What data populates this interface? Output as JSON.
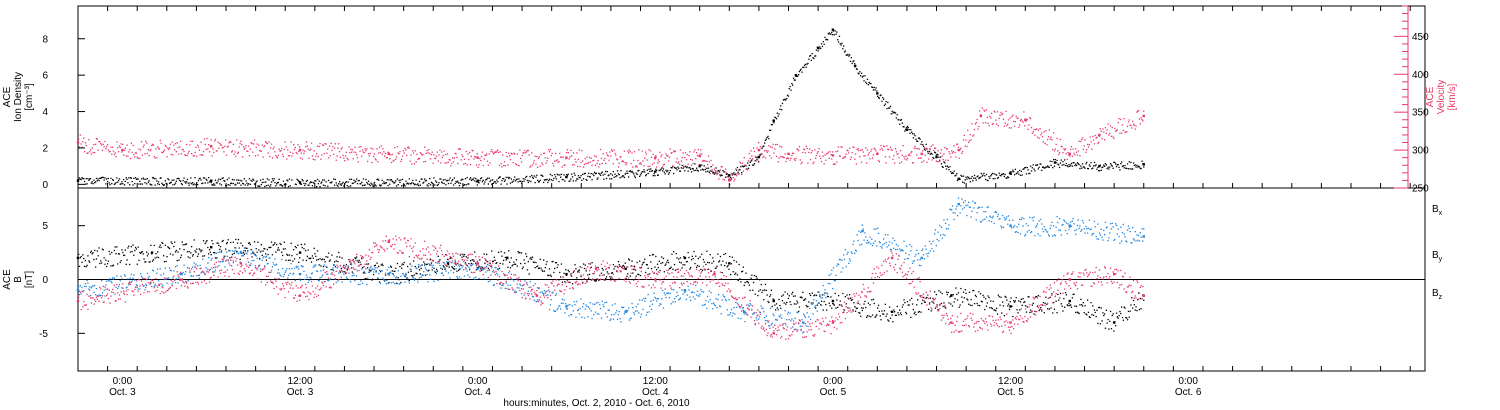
{
  "chart_data": {
    "type": "scatter",
    "time_axis": {
      "label": "hours:minutes, Oct.  2, 2010 - Oct.  6, 2010",
      "start": "2010-10-02T21:00",
      "end": "2010-10-06T16:00",
      "ticks": [
        {
          "time": "2010-10-03T00:00",
          "hm": "0:00",
          "day": "Oct. 3"
        },
        {
          "time": "2010-10-03T12:00",
          "hm": "12:00",
          "day": "Oct. 3"
        },
        {
          "time": "2010-10-04T00:00",
          "hm": "0:00",
          "day": "Oct. 4"
        },
        {
          "time": "2010-10-04T12:00",
          "hm": "12:00",
          "day": "Oct. 4"
        },
        {
          "time": "2010-10-05T00:00",
          "hm": "0:00",
          "day": "Oct. 5"
        },
        {
          "time": "2010-10-05T12:00",
          "hm": "12:00",
          "day": "Oct. 5"
        },
        {
          "time": "2010-10-06T00:00",
          "hm": "0:00",
          "day": "Oct. 6"
        }
      ]
    },
    "panels": [
      {
        "left_axis": {
          "label_lines": [
            "ACE",
            "Ion Density",
            "[cm⁻³]"
          ],
          "range": [
            -0.2,
            9.8
          ],
          "ticks": [
            0,
            2,
            4,
            6,
            8
          ],
          "color": "#000000"
        },
        "right_axis": {
          "label_lines": [
            "ACE",
            "Velocity",
            "[km/s]"
          ],
          "range": [
            250,
            490
          ],
          "ticks": [
            250,
            300,
            350,
            400,
            450
          ],
          "color": "#e8386a"
        },
        "series": [
          {
            "quantity": "density",
            "axis": "left",
            "color": "#000000",
            "points": [
              [
                "2010-10-02T21:00",
                0.2
              ],
              [
                "2010-10-03T06:00",
                0.2
              ],
              [
                "2010-10-03T12:00",
                0.1
              ],
              [
                "2010-10-04T00:00",
                0.2
              ],
              [
                "2010-10-04T06:00",
                0.4
              ],
              [
                "2010-10-04T12:00",
                0.7
              ],
              [
                "2010-10-04T15:00",
                1.0
              ],
              [
                "2010-10-04T17:00",
                0.5
              ],
              [
                "2010-10-04T19:00",
                1.5
              ],
              [
                "2010-10-04T20:00",
                3.5
              ],
              [
                "2010-10-04T21:30",
                6.0
              ],
              [
                "2010-10-04T23:00",
                7.5
              ],
              [
                "2010-10-05T00:00",
                8.5
              ],
              [
                "2010-10-05T01:30",
                6.5
              ],
              [
                "2010-10-05T03:00",
                5.0
              ],
              [
                "2010-10-05T05:00",
                3.0
              ],
              [
                "2010-10-05T07:00",
                1.5
              ],
              [
                "2010-10-05T08:30",
                0.3
              ],
              [
                "2010-10-05T12:00",
                0.6
              ],
              [
                "2010-10-05T15:00",
                1.2
              ],
              [
                "2010-10-05T18:00",
                1.0
              ],
              [
                "2010-10-05T21:00",
                1.1
              ]
            ]
          },
          {
            "quantity": "velocity",
            "axis": "right",
            "color": "#e8386a",
            "points": [
              [
                "2010-10-02T21:00",
                310
              ],
              [
                "2010-10-03T00:00",
                300
              ],
              [
                "2010-10-03T06:00",
                305
              ],
              [
                "2010-10-03T12:00",
                300
              ],
              [
                "2010-10-03T18:00",
                295
              ],
              [
                "2010-10-04T00:00",
                290
              ],
              [
                "2010-10-04T06:00",
                290
              ],
              [
                "2010-10-04T12:00",
                290
              ],
              [
                "2010-10-04T15:00",
                292
              ],
              [
                "2010-10-04T17:00",
                260
              ],
              [
                "2010-10-04T19:00",
                300
              ],
              [
                "2010-10-04T21:00",
                295
              ],
              [
                "2010-10-05T00:00",
                293
              ],
              [
                "2010-10-05T03:00",
                295
              ],
              [
                "2010-10-05T06:00",
                295
              ],
              [
                "2010-10-05T08:30",
                300
              ],
              [
                "2010-10-05T10:00",
                345
              ],
              [
                "2010-10-05T13:00",
                340
              ],
              [
                "2010-10-05T16:00",
                295
              ],
              [
                "2010-10-05T18:00",
                320
              ],
              [
                "2010-10-05T21:00",
                345
              ]
            ]
          }
        ]
      },
      {
        "left_axis": {
          "label_lines": [
            "ACE",
            "B",
            "[nT]"
          ],
          "range": [
            -8.5,
            8.5
          ],
          "ticks": [
            -5,
            0,
            5
          ],
          "color": "#000000"
        },
        "zero_line": true,
        "series": [
          {
            "name": "Bx",
            "color": "#000000",
            "points": [
              [
                "2010-10-02T21:00",
                2.0
              ],
              [
                "2010-10-03T02:00",
                2.5
              ],
              [
                "2010-10-03T06:00",
                3.0
              ],
              [
                "2010-10-03T12:00",
                2.5
              ],
              [
                "2010-10-03T18:00",
                0.5
              ],
              [
                "2010-10-03T22:00",
                1.5
              ],
              [
                "2010-10-04T02:00",
                2.0
              ],
              [
                "2010-10-04T06:00",
                0.5
              ],
              [
                "2010-10-04T10:00",
                1.0
              ],
              [
                "2010-10-04T14:00",
                2.0
              ],
              [
                "2010-10-04T17:00",
                1.5
              ],
              [
                "2010-10-04T20:00",
                -2.0
              ],
              [
                "2010-10-05T00:00",
                -2.0
              ],
              [
                "2010-10-05T04:00",
                -3.0
              ],
              [
                "2010-10-05T08:00",
                -1.5
              ],
              [
                "2010-10-05T12:00",
                -2.5
              ],
              [
                "2010-10-05T16:00",
                -2.0
              ],
              [
                "2010-10-05T19:00",
                -4.0
              ],
              [
                "2010-10-05T21:00",
                -1.5
              ]
            ]
          },
          {
            "name": "By",
            "color": "#1f86e0",
            "points": [
              [
                "2010-10-02T21:00",
                -1.0
              ],
              [
                "2010-10-03T04:00",
                0.5
              ],
              [
                "2010-10-03T08:00",
                2.5
              ],
              [
                "2010-10-03T12:00",
                0.5
              ],
              [
                "2010-10-03T18:00",
                0.5
              ],
              [
                "2010-10-04T00:00",
                1.0
              ],
              [
                "2010-10-04T06:00",
                -2.5
              ],
              [
                "2010-10-04T10:00",
                -3.0
              ],
              [
                "2010-10-04T14:00",
                -1.0
              ],
              [
                "2010-10-04T18:00",
                -3.0
              ],
              [
                "2010-10-04T22:00",
                -4.0
              ],
              [
                "2010-10-05T02:00",
                4.5
              ],
              [
                "2010-10-05T06:00",
                2.0
              ],
              [
                "2010-10-05T08:30",
                7.0
              ],
              [
                "2010-10-05T12:00",
                5.0
              ],
              [
                "2010-10-05T16:00",
                5.0
              ],
              [
                "2010-10-05T21:00",
                4.0
              ]
            ]
          },
          {
            "name": "Bz",
            "color": "#e8386a",
            "points": [
              [
                "2010-10-02T21:00",
                -2.0
              ],
              [
                "2010-10-03T04:00",
                0.0
              ],
              [
                "2010-10-03T08:00",
                1.5
              ],
              [
                "2010-10-03T12:00",
                -1.5
              ],
              [
                "2010-10-03T18:00",
                3.5
              ],
              [
                "2010-10-04T00:00",
                1.5
              ],
              [
                "2010-10-04T04:00",
                -1.5
              ],
              [
                "2010-10-04T08:00",
                1.0
              ],
              [
                "2010-10-04T12:00",
                0.0
              ],
              [
                "2010-10-04T16:00",
                0.5
              ],
              [
                "2010-10-04T20:00",
                -5.0
              ],
              [
                "2010-10-05T00:00",
                -4.0
              ],
              [
                "2010-10-05T04:00",
                2.0
              ],
              [
                "2010-10-05T08:00",
                -4.0
              ],
              [
                "2010-10-05T12:00",
                -4.0
              ],
              [
                "2010-10-05T16:00",
                0.0
              ],
              [
                "2010-10-05T19:00",
                0.5
              ],
              [
                "2010-10-05T21:00",
                -1.5
              ]
            ]
          }
        ]
      }
    ]
  }
}
